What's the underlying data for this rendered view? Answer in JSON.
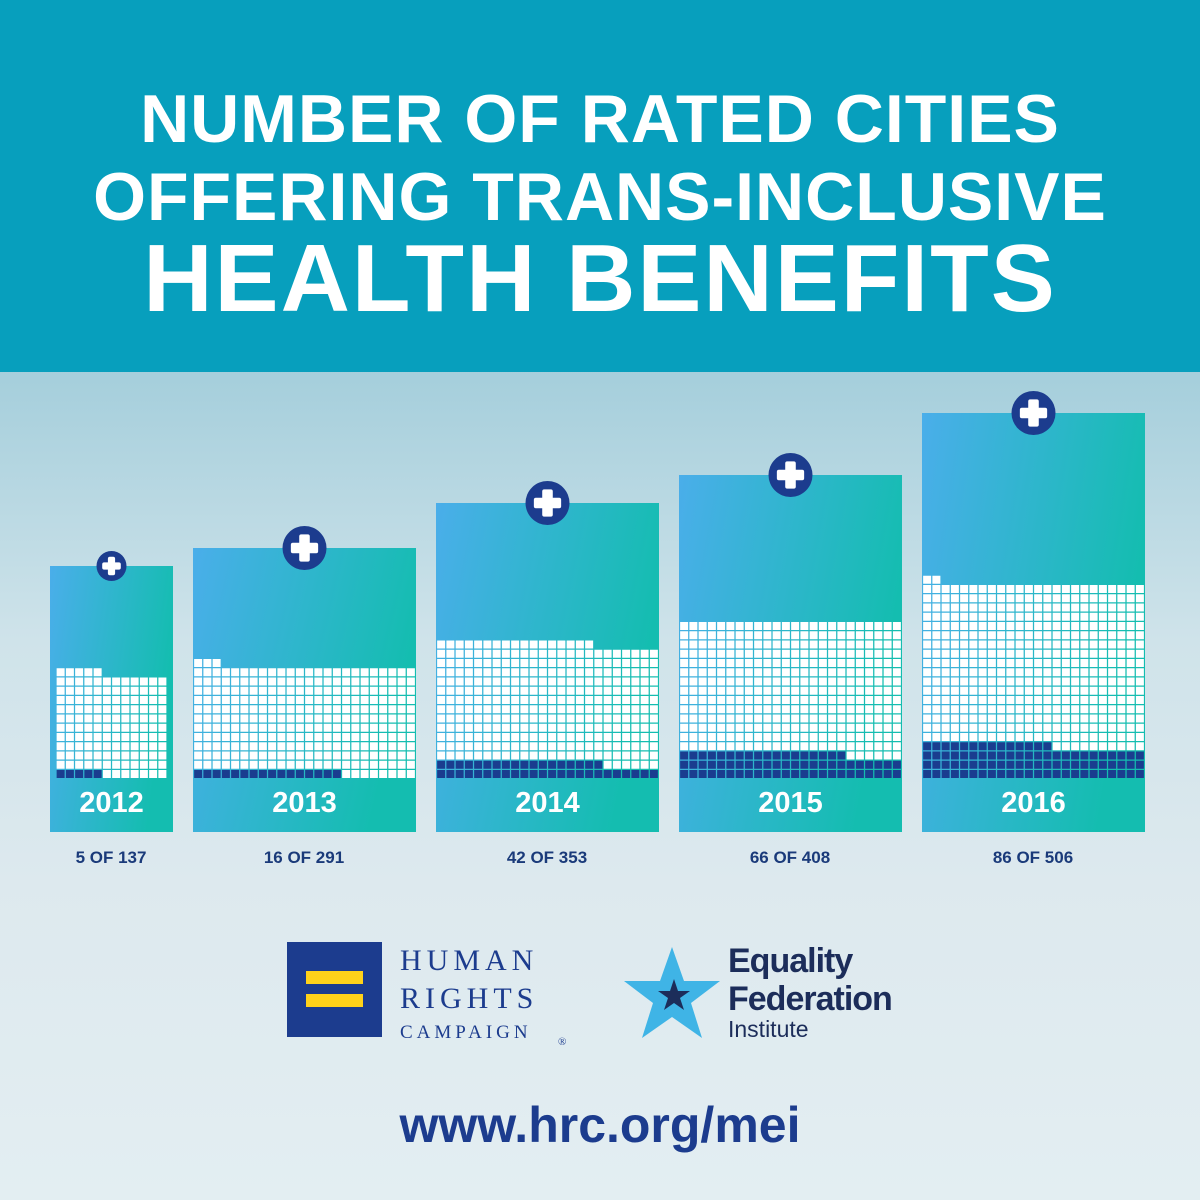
{
  "title": {
    "line1": "NUMBER OF RATED CITIES",
    "line2": "OFFERING TRANS-INCLUSIVE",
    "line3": "HEALTH BENEFITS"
  },
  "chart_data": {
    "type": "bar",
    "title": "NUMBER OF RATED CITIES OFFERING TRANS-INCLUSIVE HEALTH BENEFITS",
    "categories": [
      "2012",
      "2013",
      "2014",
      "2015",
      "2016"
    ],
    "series": [
      {
        "values": [
          5,
          16,
          42,
          66,
          86
        ]
      },
      {
        "values": [
          137,
          291,
          353,
          408,
          506
        ]
      }
    ],
    "labels": [
      "5 OF 137",
      "16 OF 291",
      "42 OF 353",
      "66 OF 408",
      "86 OF 506"
    ],
    "icon": "medical-cross-icon",
    "colors": {
      "filled": "#1a3d8f",
      "empty": "#ffffff",
      "card_left": "#48aee8",
      "card_right": "#17bcb2"
    }
  },
  "logos": {
    "hrc": {
      "line1": "HUMAN",
      "line2": "RIGHTS",
      "line3": "CAMPAIGN",
      "registered": "®"
    },
    "efi": {
      "line1": "Equality",
      "line2": "Federation",
      "line3": "Institute"
    }
  },
  "url": "www.hrc.org/mei",
  "colors": {
    "header": "#079fbd",
    "navy": "#1c3c8e",
    "yellow": "#ffd21a",
    "star": "#3fb4e6"
  }
}
